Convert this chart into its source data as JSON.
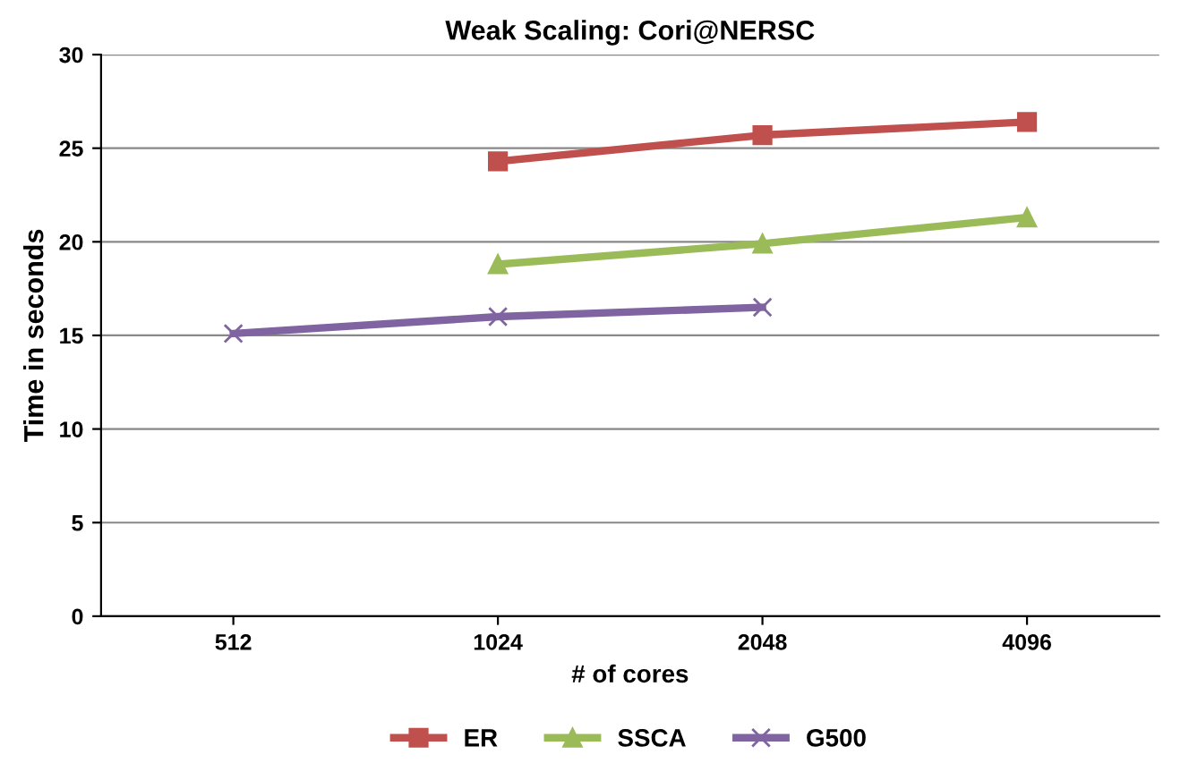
{
  "chart_data": {
    "type": "line",
    "title": "Weak Scaling: Cori@NERSC",
    "xlabel": "# of cores",
    "ylabel": "Time in seconds",
    "categories": [
      "512",
      "1024",
      "2048",
      "4096"
    ],
    "series": [
      {
        "name": "ER",
        "color": "#c0504d",
        "marker": "square",
        "values": [
          null,
          24.3,
          25.7,
          26.4
        ]
      },
      {
        "name": "SSCA",
        "color": "#9bbb59",
        "marker": "triangle",
        "values": [
          null,
          18.8,
          19.9,
          21.3
        ]
      },
      {
        "name": "G500",
        "color": "#8064a2",
        "marker": "cross",
        "values": [
          15.1,
          16.0,
          16.5,
          null
        ]
      }
    ],
    "ylim": [
      0,
      30
    ],
    "yticks": [
      0,
      5,
      10,
      15,
      20,
      25,
      30
    ],
    "grid": "y",
    "legend": "bottom",
    "line_style": "solid"
  }
}
